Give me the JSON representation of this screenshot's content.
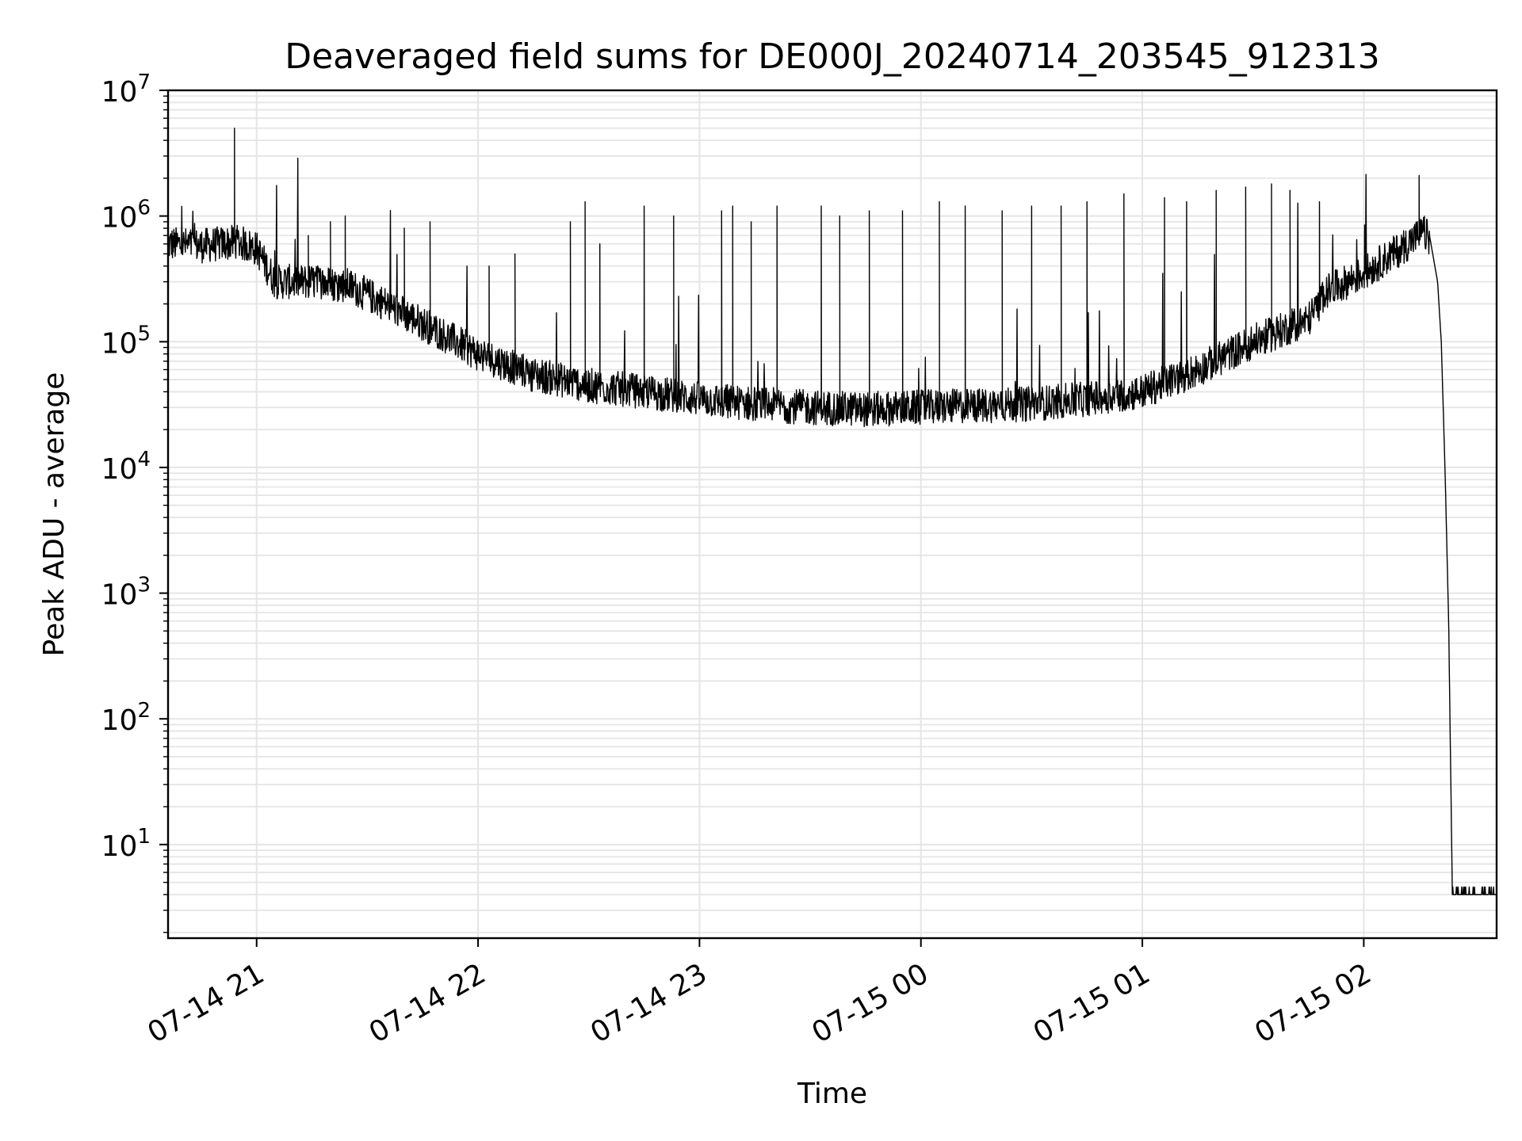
{
  "chart_data": {
    "type": "line",
    "title": "Deaveraged field sums for DE000J_20240714_203545_912313",
    "xlabel": "Time",
    "ylabel": "Peak ADU - average",
    "yscale": "log",
    "grid": true,
    "line_color": "#000000",
    "grid_color": "#e5e5e5",
    "xlim": [
      "2024-07-14 20:36",
      "2024-07-15 02:36"
    ],
    "ylim": [
      1.8,
      10000000
    ],
    "x_ticks": [
      {
        "value": "2024-07-14 21:00",
        "label": "07-14 21"
      },
      {
        "value": "2024-07-14 22:00",
        "label": "07-14 22"
      },
      {
        "value": "2024-07-14 23:00",
        "label": "07-14 23"
      },
      {
        "value": "2024-07-15 00:00",
        "label": "07-15 00"
      },
      {
        "value": "2024-07-15 01:00",
        "label": "07-15 01"
      },
      {
        "value": "2024-07-15 02:00",
        "label": "07-15 02"
      }
    ],
    "y_ticks": [
      {
        "value": 10,
        "base": "10",
        "exp": "1"
      },
      {
        "value": 100,
        "base": "10",
        "exp": "2"
      },
      {
        "value": 1000,
        "base": "10",
        "exp": "3"
      },
      {
        "value": 10000,
        "base": "10",
        "exp": "4"
      },
      {
        "value": 100000,
        "base": "10",
        "exp": "5"
      },
      {
        "value": 1000000,
        "base": "10",
        "exp": "6"
      },
      {
        "value": 10000000,
        "base": "10",
        "exp": "7"
      }
    ],
    "series": [
      {
        "baseline": [
          [
            "2024-07-14 20:36",
            600000
          ],
          [
            "2024-07-14 20:45",
            580000
          ],
          [
            "2024-07-14 20:55",
            620000
          ],
          [
            "2024-07-14 21:00",
            550000
          ],
          [
            "2024-07-14 21:05",
            300000
          ],
          [
            "2024-07-14 21:15",
            300000
          ],
          [
            "2024-07-14 21:25",
            280000
          ],
          [
            "2024-07-14 21:35",
            200000
          ],
          [
            "2024-07-14 21:45",
            140000
          ],
          [
            "2024-07-14 22:00",
            80000
          ],
          [
            "2024-07-14 22:15",
            55000
          ],
          [
            "2024-07-14 22:30",
            45000
          ],
          [
            "2024-07-14 22:45",
            40000
          ],
          [
            "2024-07-14 23:00",
            35000
          ],
          [
            "2024-07-14 23:15",
            32000
          ],
          [
            "2024-07-14 23:30",
            30000
          ],
          [
            "2024-07-14 23:45",
            29000
          ],
          [
            "2024-07-15 00:00",
            30000
          ],
          [
            "2024-07-15 00:15",
            31000
          ],
          [
            "2024-07-15 00:30",
            32000
          ],
          [
            "2024-07-15 00:45",
            35000
          ],
          [
            "2024-07-15 01:00",
            40000
          ],
          [
            "2024-07-15 01:15",
            60000
          ],
          [
            "2024-07-15 01:30",
            100000
          ],
          [
            "2024-07-15 01:45",
            150000
          ],
          [
            "2024-07-15 01:50",
            250000
          ],
          [
            "2024-07-15 02:00",
            350000
          ],
          [
            "2024-07-15 02:10",
            550000
          ],
          [
            "2024-07-15 02:16",
            750000
          ],
          [
            "2024-07-15 02:18",
            650000
          ],
          [
            "2024-07-15 02:20",
            300000
          ],
          [
            "2024-07-15 02:21",
            100000
          ],
          [
            "2024-07-15 02:22",
            10000
          ],
          [
            "2024-07-15 02:23",
            600
          ],
          [
            "2024-07-15 02:24",
            4
          ],
          [
            "2024-07-15 02:36",
            4
          ]
        ],
        "peaks": [
          [
            "2024-07-14 20:54",
            5000000
          ],
          [
            "2024-07-14 21:14",
            700000
          ],
          [
            "2024-07-14 21:20",
            900000
          ],
          [
            "2024-07-14 21:24",
            1000000
          ],
          [
            "2024-07-14 21:40",
            800000
          ],
          [
            "2024-07-14 21:47",
            900000
          ],
          [
            "2024-07-14 22:03",
            400000
          ],
          [
            "2024-07-14 22:10",
            500000
          ],
          [
            "2024-07-14 22:25",
            900000
          ],
          [
            "2024-07-14 22:29",
            1300000
          ],
          [
            "2024-07-14 22:33",
            600000
          ],
          [
            "2024-07-14 22:45",
            1200000
          ],
          [
            "2024-07-14 22:53",
            1000000
          ],
          [
            "2024-07-14 23:06",
            1100000
          ],
          [
            "2024-07-14 23:09",
            1200000
          ],
          [
            "2024-07-14 23:14",
            900000
          ],
          [
            "2024-07-14 23:21",
            1200000
          ],
          [
            "2024-07-14 23:33",
            1200000
          ],
          [
            "2024-07-14 23:38",
            1000000
          ],
          [
            "2024-07-14 23:46",
            1100000
          ],
          [
            "2024-07-14 23:55",
            1100000
          ],
          [
            "2024-07-15 00:05",
            1300000
          ],
          [
            "2024-07-15 00:12",
            1200000
          ],
          [
            "2024-07-15 00:22",
            1100000
          ],
          [
            "2024-07-15 00:30",
            1200000
          ],
          [
            "2024-07-15 00:38",
            1200000
          ],
          [
            "2024-07-15 00:45",
            1300000
          ],
          [
            "2024-07-15 00:55",
            1500000
          ],
          [
            "2024-07-15 01:06",
            1400000
          ],
          [
            "2024-07-15 01:12",
            1300000
          ],
          [
            "2024-07-15 01:20",
            1600000
          ],
          [
            "2024-07-15 01:28",
            1700000
          ],
          [
            "2024-07-15 01:35",
            1800000
          ],
          [
            "2024-07-15 01:40",
            1600000
          ],
          [
            "2024-07-15 01:48",
            1300000
          ],
          [
            "2024-07-15 02:15",
            2100000
          ]
        ]
      }
    ]
  }
}
